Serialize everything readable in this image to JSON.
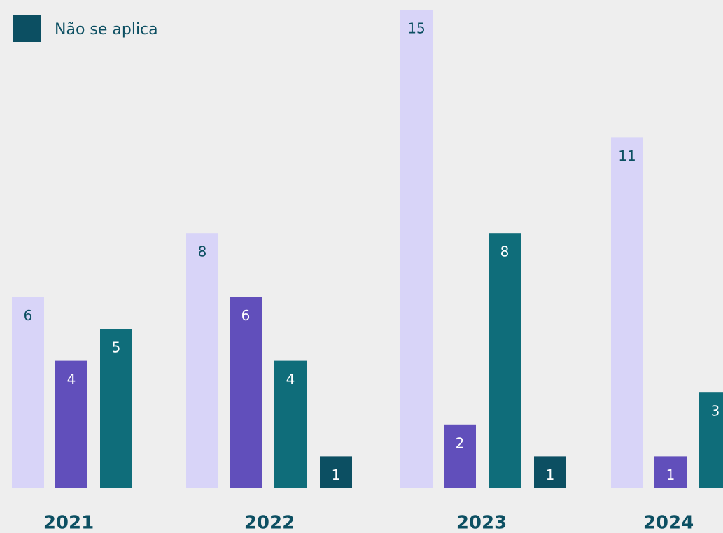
{
  "chart_data": {
    "type": "bar",
    "categories": [
      "2021",
      "2022",
      "2023",
      "2024"
    ],
    "series": [
      {
        "color": "#d8d4f8",
        "values": [
          6,
          8,
          15,
          11
        ]
      },
      {
        "color": "#614fbb",
        "values": [
          4,
          6,
          2,
          1
        ]
      },
      {
        "color": "#0f6d7a",
        "values": [
          5,
          4,
          8,
          3
        ]
      },
      {
        "name": "Não se aplica",
        "color": "#0c4f62",
        "values": [
          null,
          1,
          1,
          null
        ]
      }
    ],
    "legend": "top-left"
  }
}
